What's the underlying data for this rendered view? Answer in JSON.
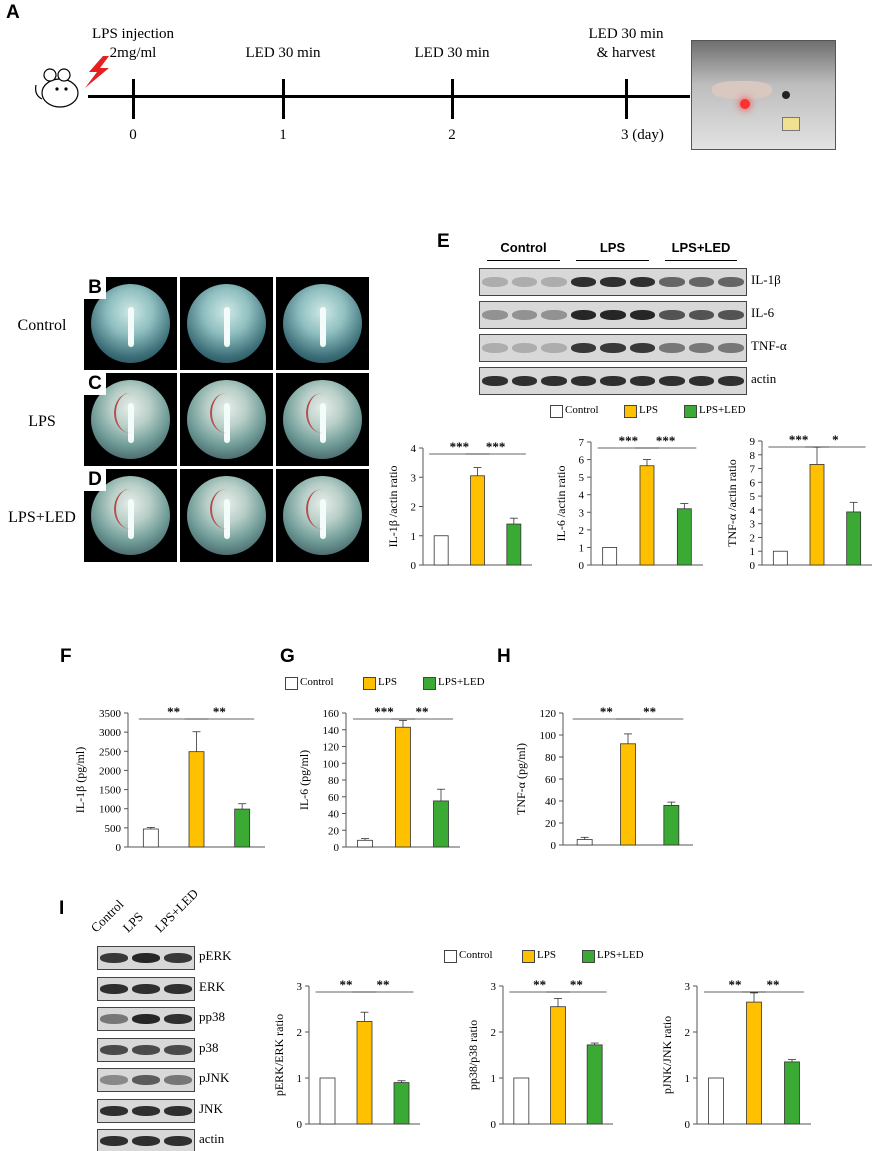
{
  "panels": {
    "A": "A",
    "B": "B",
    "C": "C",
    "D": "D",
    "E": "E",
    "F": "F",
    "G": "G",
    "H": "H",
    "I": "I"
  },
  "timeline": {
    "events": [
      {
        "top": "LPS injection",
        "top2": "2mg/ml",
        "day": "0"
      },
      {
        "top": "LED 30 min",
        "top2": "",
        "day": "1"
      },
      {
        "top": "LED 30 min",
        "top2": "",
        "day": "2"
      },
      {
        "top": "LED 30 min",
        "top2": "& harvest",
        "day": "3 (day)"
      }
    ]
  },
  "eyes": {
    "rows": [
      "Control",
      "LPS",
      "LPS+LED"
    ]
  },
  "blotE": {
    "groups": [
      "Control",
      "LPS",
      "LPS+LED"
    ],
    "rows": [
      "IL-1β",
      "IL-6",
      "TNF-α",
      "actin"
    ]
  },
  "blotI": {
    "groups": [
      "Control",
      "LPS",
      "LPS+LED"
    ],
    "rows": [
      "pERK",
      "ERK",
      "pp38",
      "p38",
      "pJNK",
      "JNK",
      "actin"
    ]
  },
  "legend": {
    "items": [
      "Control",
      "LPS",
      "LPS+LED"
    ]
  },
  "colors": {
    "Control": "#ffffff",
    "LPS": "#ffc000",
    "LPS+LED": "#3aaa35"
  },
  "chart_data": [
    {
      "id": "E1",
      "type": "bar",
      "categories": [
        "Control",
        "LPS",
        "LPS+LED"
      ],
      "values": [
        1.0,
        3.05,
        1.4
      ],
      "errors": [
        0,
        0.28,
        0.2
      ],
      "ylabel": "IL-1β /actin ratio",
      "ylim": [
        0,
        4
      ],
      "yticks": [
        0,
        1,
        2,
        3,
        4
      ],
      "sig": [
        "***",
        "***"
      ]
    },
    {
      "id": "E2",
      "type": "bar",
      "categories": [
        "Control",
        "LPS",
        "LPS+LED"
      ],
      "values": [
        1.0,
        5.65,
        3.2
      ],
      "errors": [
        0,
        0.35,
        0.3
      ],
      "ylabel": "IL-6 /actin ratio",
      "ylim": [
        0,
        7
      ],
      "yticks": [
        0,
        1,
        2,
        3,
        4,
        5,
        6,
        7
      ],
      "sig": [
        "***",
        "***"
      ]
    },
    {
      "id": "E3",
      "type": "bar",
      "categories": [
        "Control",
        "LPS",
        "LPS+LED"
      ],
      "values": [
        1.0,
        7.3,
        3.85
      ],
      "errors": [
        0,
        1.25,
        0.7
      ],
      "ylabel": "TNF-α /actin ratio",
      "ylim": [
        0,
        9
      ],
      "yticks": [
        0,
        1,
        2,
        3,
        4,
        5,
        6,
        7,
        8,
        9
      ],
      "sig": [
        "***",
        "*"
      ]
    },
    {
      "id": "F",
      "type": "bar",
      "categories": [
        "Control",
        "LPS",
        "LPS+LED"
      ],
      "values": [
        470,
        2490,
        990
      ],
      "errors": [
        40,
        520,
        140
      ],
      "ylabel": "IL-1β (pg/ml)",
      "ylim": [
        0,
        3500
      ],
      "yticks": [
        0,
        500,
        1000,
        1500,
        2000,
        2500,
        3000,
        3500
      ],
      "sig": [
        "**",
        "**"
      ]
    },
    {
      "id": "G",
      "type": "bar",
      "categories": [
        "Control",
        "LPS",
        "LPS+LED"
      ],
      "values": [
        8,
        143,
        55
      ],
      "errors": [
        2,
        8,
        14
      ],
      "ylabel": "IL-6 (pg/ml)",
      "ylim": [
        0,
        160
      ],
      "yticks": [
        0,
        20,
        40,
        60,
        80,
        100,
        120,
        140,
        160
      ],
      "sig": [
        "***",
        "**"
      ]
    },
    {
      "id": "H",
      "type": "bar",
      "categories": [
        "Control",
        "LPS",
        "LPS+LED"
      ],
      "values": [
        5,
        92,
        36
      ],
      "errors": [
        2,
        9,
        3
      ],
      "ylabel": "TNF-α (pg/ml)",
      "ylim": [
        0,
        120
      ],
      "yticks": [
        0,
        20,
        40,
        60,
        80,
        100,
        120
      ],
      "sig": [
        "**",
        "**"
      ]
    },
    {
      "id": "I1",
      "type": "bar",
      "categories": [
        "Control",
        "LPS",
        "LPS+LED"
      ],
      "values": [
        1.0,
        2.23,
        0.9
      ],
      "errors": [
        0,
        0.2,
        0.04
      ],
      "ylabel": "pERK/ERK ratio",
      "ylim": [
        0,
        3
      ],
      "yticks": [
        0,
        1,
        2,
        3
      ],
      "sig": [
        "**",
        "**"
      ]
    },
    {
      "id": "I2",
      "type": "bar",
      "categories": [
        "Control",
        "LPS",
        "LPS+LED"
      ],
      "values": [
        1.0,
        2.55,
        1.72
      ],
      "errors": [
        0,
        0.18,
        0.04
      ],
      "ylabel": "pp38/p38 ratio",
      "ylim": [
        0,
        3
      ],
      "yticks": [
        0,
        1,
        2,
        3
      ],
      "sig": [
        "**",
        "**"
      ]
    },
    {
      "id": "I3",
      "type": "bar",
      "categories": [
        "Control",
        "LPS",
        "LPS+LED"
      ],
      "values": [
        1.0,
        2.65,
        1.35
      ],
      "errors": [
        0,
        0.2,
        0.05
      ],
      "ylabel": "pJNK/JNK ratio",
      "ylim": [
        0,
        3
      ],
      "yticks": [
        0,
        1,
        2,
        3
      ],
      "sig": [
        "**",
        "**"
      ]
    }
  ]
}
